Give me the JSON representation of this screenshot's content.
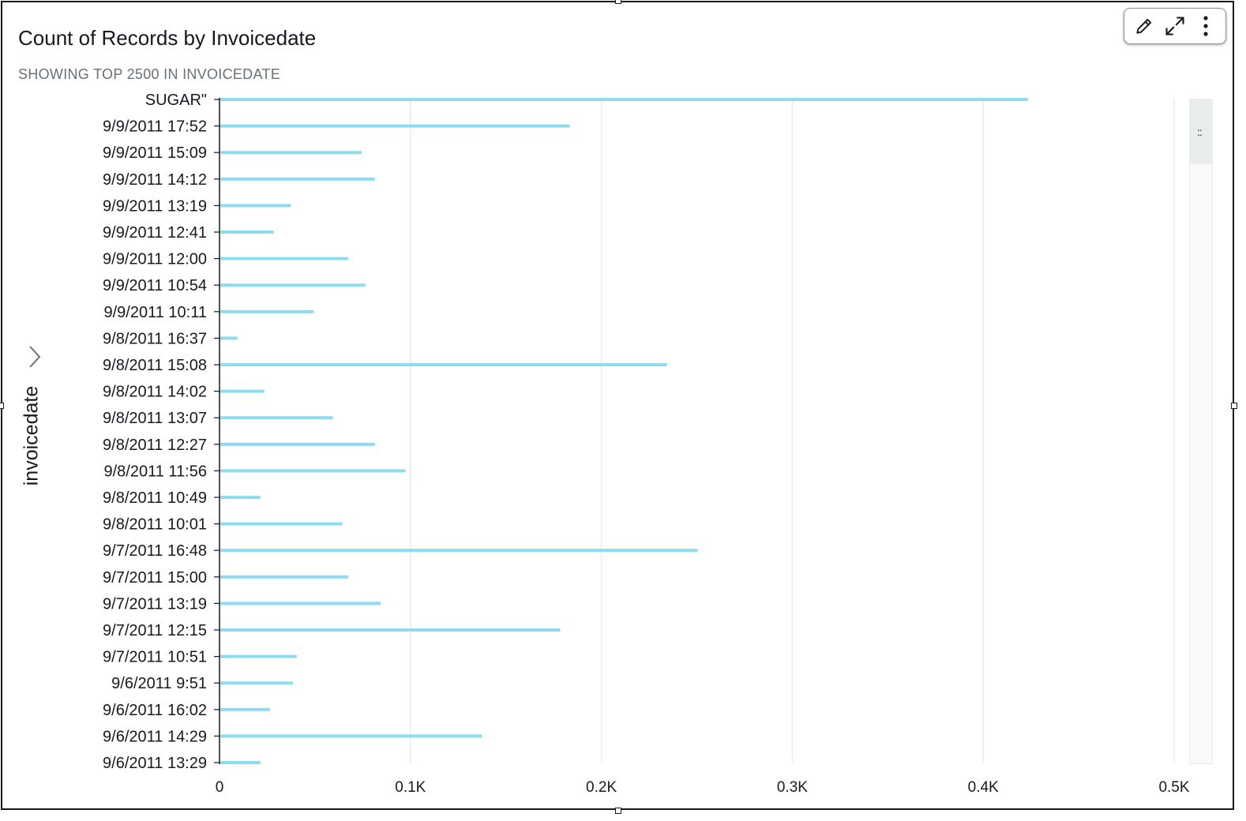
{
  "visual": {
    "title": "Count of Records by Invoicedate",
    "subtitle": "SHOWING TOP 2500 IN INVOICEDATE",
    "toolbar": {
      "edit_icon": "pencil-icon",
      "expand_icon": "expand-icon",
      "menu_icon": "more-vertical-icon"
    }
  },
  "colors": {
    "bar": "#8ddcf0",
    "grid": "#e9ebed",
    "text": "#16191f",
    "subtext": "#687078"
  },
  "chart_data": {
    "type": "bar",
    "orientation": "horizontal",
    "ylabel": "invoicedate",
    "xlabel": "",
    "xlim": [
      0,
      500
    ],
    "grid": true,
    "xticks": [
      "0",
      "0.1K",
      "0.2K",
      "0.3K",
      "0.4K",
      "0.5K"
    ],
    "xtick_values": [
      0,
      100,
      200,
      300,
      400,
      500
    ],
    "categories": [
      "SUGAR\"",
      "9/9/2011 17:52",
      "9/9/2011 15:09",
      "9/9/2011 14:12",
      "9/9/2011 13:19",
      "9/9/2011 12:41",
      "9/9/2011 12:00",
      "9/9/2011 10:54",
      "9/9/2011 10:11",
      "9/8/2011 16:37",
      "9/8/2011 15:08",
      "9/8/2011 14:02",
      "9/8/2011 13:07",
      "9/8/2011 12:27",
      "9/8/2011 11:56",
      "9/8/2011 10:49",
      "9/8/2011 10:01",
      "9/7/2011 16:48",
      "9/7/2011 15:00",
      "9/7/2011 13:19",
      "9/7/2011 12:15",
      "9/7/2011 10:51",
      "9/6/2011 9:51",
      "9/6/2011 16:02",
      "9/6/2011 14:29",
      "9/6/2011 13:29"
    ],
    "values": [
      423,
      183,
      74,
      81,
      37,
      28,
      67,
      76,
      49,
      9,
      234,
      23,
      59,
      81,
      97,
      21,
      64,
      250,
      67,
      84,
      178,
      40,
      38,
      26,
      137,
      21
    ]
  }
}
